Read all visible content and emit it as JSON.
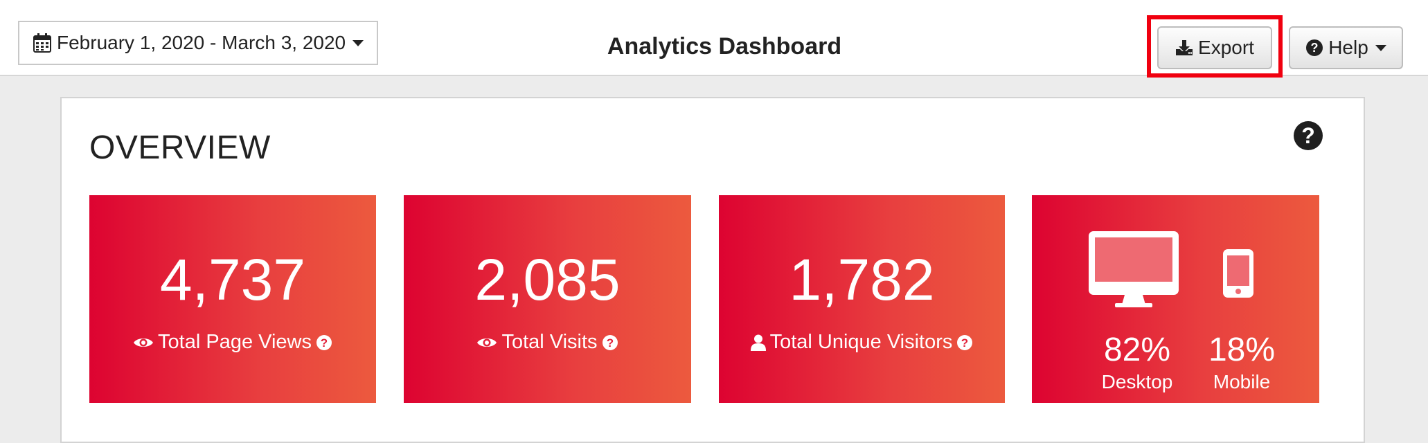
{
  "header": {
    "date_range": "February 1, 2020 - March 3, 2020",
    "title": "Analytics Dashboard",
    "export_label": "Export",
    "help_label": "Help"
  },
  "overview": {
    "title": "OVERVIEW",
    "cards": [
      {
        "value": "4,737",
        "label": "Total Page Views"
      },
      {
        "value": "2,085",
        "label": "Total Visits"
      },
      {
        "value": "1,782",
        "label": "Total Unique Visitors"
      }
    ],
    "devices": {
      "desktop_pct": "82%",
      "desktop_label": "Desktop",
      "mobile_pct": "18%",
      "mobile_label": "Mobile"
    }
  },
  "colors": {
    "card_gradient_start": "#dd0331",
    "card_gradient_end": "#ec5a3e",
    "highlight": "#f0000f"
  },
  "icons": [
    "calendar-icon",
    "caret-down-icon",
    "download-icon",
    "question-circle-icon",
    "eye-icon",
    "user-icon",
    "desktop-icon",
    "mobile-icon"
  ]
}
